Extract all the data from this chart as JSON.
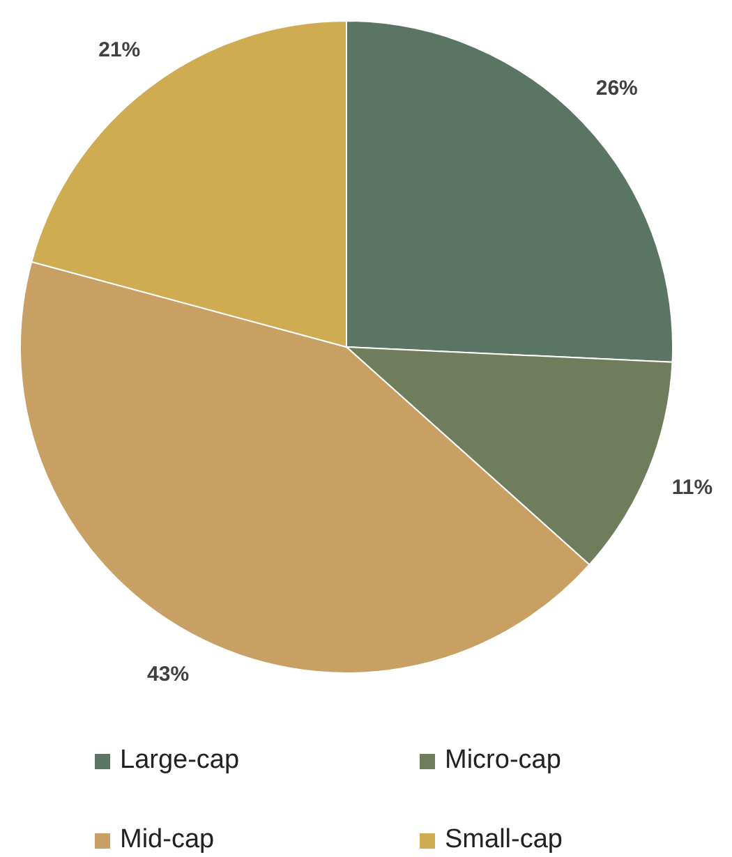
{
  "chart_data": {
    "type": "pie",
    "categories": [
      "Large-cap",
      "Micro-cap",
      "Mid-cap",
      "Small-cap"
    ],
    "values": [
      26,
      11,
      43,
      21
    ],
    "colors": [
      "#5b7565",
      "#6f7d5c",
      "#c9a063",
      "#cfab52"
    ],
    "data_labels": true,
    "value_labels": [
      "26%",
      "11%",
      "43%",
      "21%"
    ],
    "legend": "bottom"
  }
}
